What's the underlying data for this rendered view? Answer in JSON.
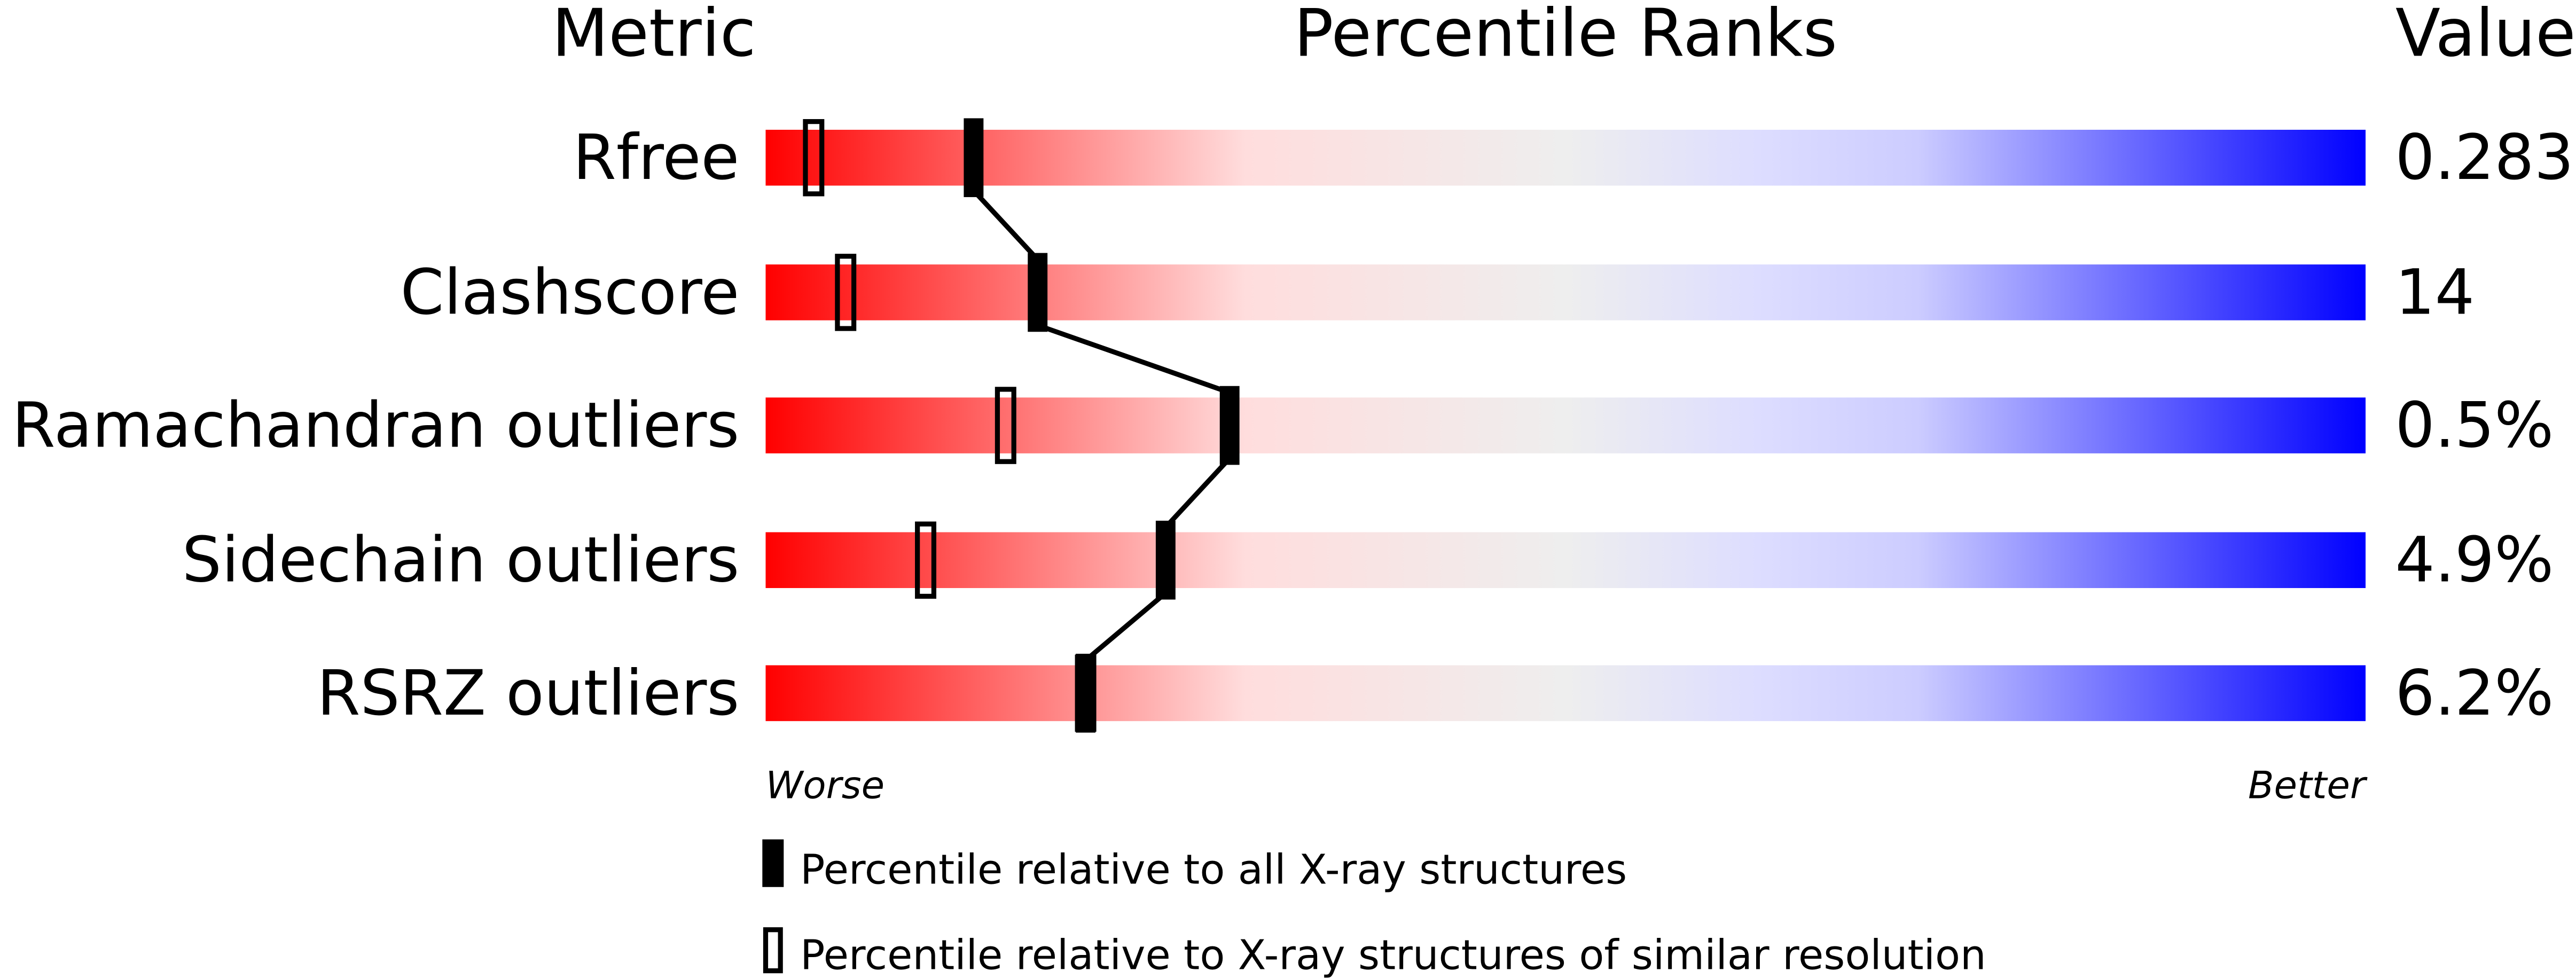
{
  "chart_data": {
    "type": "percentile-bar",
    "headers": {
      "metric": "Metric",
      "ranks": "Percentile Ranks",
      "value": "Value"
    },
    "xlim": [
      0,
      100
    ],
    "rows": [
      {
        "metric": "Rfree",
        "value": "0.283",
        "percentile_all": 13,
        "percentile_similar": 3
      },
      {
        "metric": "Clashscore",
        "value": "14",
        "percentile_all": 17,
        "percentile_similar": 5
      },
      {
        "metric": "Ramachandran outliers",
        "value": "0.5%",
        "percentile_all": 29,
        "percentile_similar": 15
      },
      {
        "metric": "Sidechain outliers",
        "value": "4.9%",
        "percentile_all": 25,
        "percentile_similar": 10
      },
      {
        "metric": "RSRZ outliers",
        "value": "6.2%",
        "percentile_all": 20,
        "percentile_similar": 20
      }
    ],
    "axis": {
      "left": "Worse",
      "right": "Better"
    },
    "legend": {
      "all": "Percentile relative to all X-ray structures",
      "similar": "Percentile relative to X-ray structures of similar resolution"
    },
    "colors": {
      "worse": "#ff0000",
      "middle": "#eeeeee",
      "better": "#0000ff",
      "marker": "#000000"
    }
  }
}
